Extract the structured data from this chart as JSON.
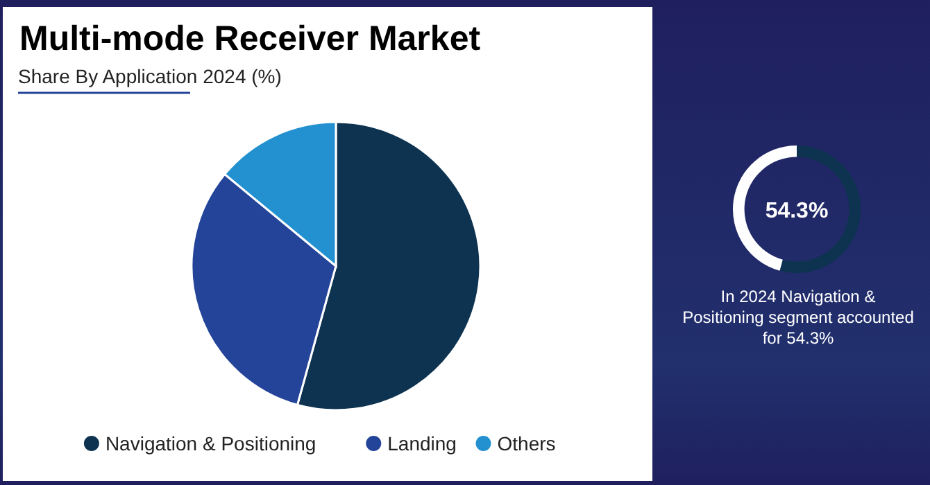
{
  "chart_data": [
    {
      "type": "pie",
      "title": "Multi-mode Receiver Market",
      "subtitle": "Share By Application 2024 (%)",
      "categories": [
        "Navigation & Positioning",
        "Landing",
        "Others"
      ],
      "values": [
        54.3,
        31.7,
        14.0
      ],
      "colors": [
        "#0d3350",
        "#24449a",
        "#2390d0"
      ],
      "legend": "bottom"
    },
    {
      "type": "donut",
      "categories": [
        null,
        null
      ],
      "values": [
        54.3,
        45.7
      ],
      "colors": [
        "#0d3350",
        "#ffffff"
      ],
      "annotations": [
        "54.3%",
        "In 2024 Navigation & Positioning segment accounted for 54.3%"
      ]
    }
  ]
}
